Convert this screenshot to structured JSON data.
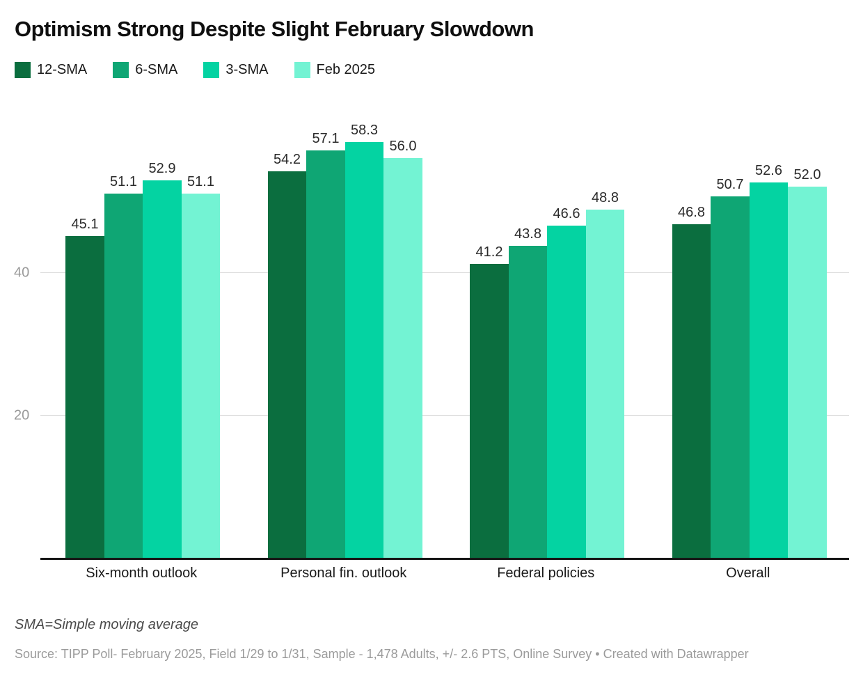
{
  "header": {
    "title": "Optimism Strong Despite Slight February Slowdown"
  },
  "chart_data": {
    "type": "bar",
    "title": "Optimism Strong Despite Slight February Slowdown",
    "categories": [
      "Six-month outlook",
      "Personal fin. outlook",
      "Federal policies",
      "Overall"
    ],
    "series": [
      {
        "name": "12-SMA",
        "color": "#0b6e3f",
        "values": [
          45.1,
          54.2,
          41.2,
          46.8
        ]
      },
      {
        "name": "6-SMA",
        "color": "#0fa674",
        "values": [
          51.1,
          57.1,
          43.8,
          50.7
        ]
      },
      {
        "name": "3-SMA",
        "color": "#04d3a2",
        "values": [
          52.9,
          58.3,
          46.6,
          52.6
        ]
      },
      {
        "name": "Feb 2025",
        "color": "#73f3d3",
        "values": [
          51.1,
          56.0,
          48.8,
          52.0
        ]
      }
    ],
    "value_label_decimals": 1,
    "xlabel": "",
    "ylabel": "",
    "ylim": [
      0,
      63.5
    ],
    "y_gridlines": [
      20,
      40
    ],
    "grid": "horizontal-only",
    "legend_position": "top-left",
    "axis_line_color": "#161616",
    "gridline_color": "#dddddd",
    "ytick_label_color": "#9a9a9a"
  },
  "footer": {
    "footnote": "SMA=Simple moving average",
    "source": "Source: TIPP Poll- February 2025, Field 1/29 to 1/31, Sample - 1,478 Adults, +/- 2.6 PTS, Online Survey • Created with Datawrapper"
  }
}
